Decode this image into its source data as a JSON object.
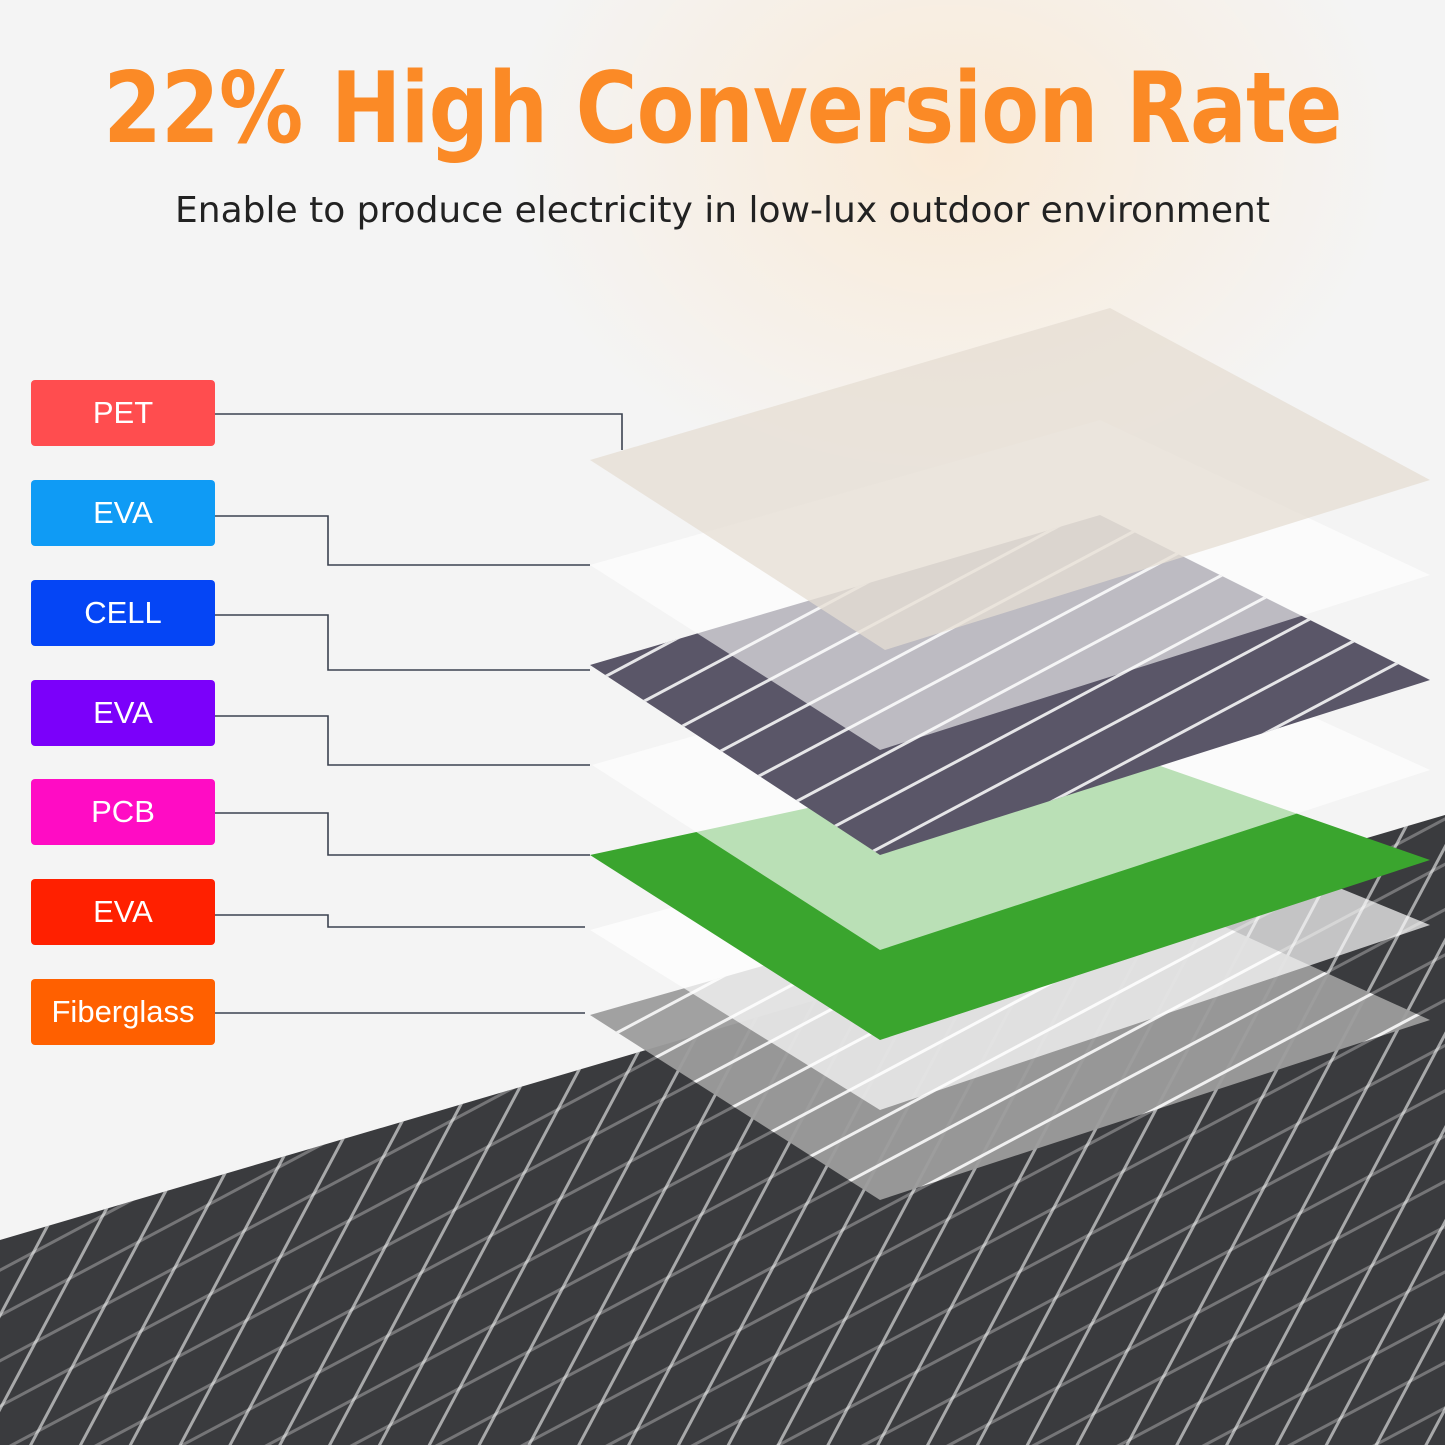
{
  "title": "22% High Conversion Rate",
  "subtitle": "Enable to produce electricity in low-lux outdoor environment",
  "colors": {
    "title": "#fb8a26",
    "panel": "#3a3b3e",
    "pcb": "#3aa52e",
    "cell": "#5a5668"
  },
  "layers": [
    {
      "label": "PET",
      "color": "#ff4d4f"
    },
    {
      "label": "EVA",
      "color": "#0f9bf5"
    },
    {
      "label": "CELL",
      "color": "#0545f5"
    },
    {
      "label": "EVA",
      "color": "#7b00fa"
    },
    {
      "label": "PCB",
      "color": "#ff0cc4"
    },
    {
      "label": "EVA",
      "color": "#ff2000"
    },
    {
      "label": "Fiberglass",
      "color": "#ff6000"
    }
  ]
}
